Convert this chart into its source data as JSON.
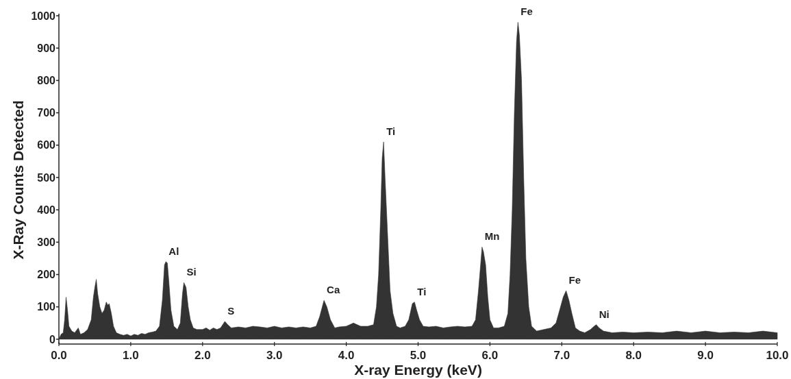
{
  "chart_data": {
    "type": "area",
    "xlabel": "X-ray Energy (keV)",
    "ylabel": "X-Ray Counts Detected",
    "x": [
      0,
      0.03,
      0.06,
      0.08,
      0.1,
      0.12,
      0.14,
      0.18,
      0.22,
      0.27,
      0.3,
      0.35,
      0.4,
      0.45,
      0.48,
      0.5,
      0.52,
      0.54,
      0.57,
      0.6,
      0.63,
      0.66,
      0.68,
      0.7,
      0.73,
      0.76,
      0.8,
      0.85,
      0.9,
      0.95,
      1,
      1.05,
      1.1,
      1.15,
      1.2,
      1.25,
      1.3,
      1.35,
      1.4,
      1.44,
      1.47,
      1.49,
      1.51,
      1.53,
      1.56,
      1.6,
      1.65,
      1.69,
      1.72,
      1.74,
      1.77,
      1.8,
      1.83,
      1.87,
      1.92,
      2,
      2.05,
      2.1,
      2.15,
      2.2,
      2.25,
      2.31,
      2.35,
      2.4,
      2.5,
      2.6,
      2.7,
      2.8,
      2.9,
      3,
      3.1,
      3.2,
      3.3,
      3.4,
      3.5,
      3.58,
      3.63,
      3.69,
      3.73,
      3.78,
      3.84,
      3.9,
      4,
      4.1,
      4.2,
      4.3,
      4.38,
      4.42,
      4.45,
      4.48,
      4.5,
      4.52,
      4.54,
      4.56,
      4.58,
      4.61,
      4.65,
      4.7,
      4.75,
      4.82,
      4.87,
      4.92,
      4.95,
      4.98,
      5.02,
      5.07,
      5.15,
      5.25,
      5.35,
      5.45,
      5.55,
      5.65,
      5.75,
      5.8,
      5.84,
      5.87,
      5.89,
      5.91,
      5.94,
      5.97,
      6,
      6.05,
      6.12,
      6.2,
      6.25,
      6.28,
      6.31,
      6.34,
      6.37,
      6.39,
      6.41,
      6.44,
      6.47,
      6.5,
      6.54,
      6.58,
      6.65,
      6.75,
      6.85,
      6.92,
      6.97,
      7.02,
      7.06,
      7.1,
      7.14,
      7.19,
      7.25,
      7.32,
      7.4,
      7.45,
      7.48,
      7.52,
      7.58,
      7.7,
      7.85,
      8,
      8.2,
      8.4,
      8.6,
      8.8,
      9,
      9.2,
      9.4,
      9.6,
      9.8,
      10
    ],
    "series": [
      {
        "color": "#333333",
        "values": [
          0,
          15,
          20,
          60,
          130,
          90,
          40,
          25,
          20,
          35,
          15,
          20,
          30,
          60,
          130,
          160,
          185,
          140,
          100,
          80,
          90,
          115,
          105,
          110,
          80,
          40,
          20,
          15,
          12,
          15,
          10,
          15,
          12,
          18,
          15,
          20,
          22,
          25,
          40,
          120,
          230,
          240,
          235,
          180,
          90,
          40,
          30,
          50,
          140,
          175,
          160,
          100,
          60,
          35,
          30,
          30,
          35,
          28,
          35,
          30,
          35,
          55,
          45,
          35,
          38,
          35,
          40,
          38,
          35,
          40,
          35,
          38,
          35,
          38,
          35,
          40,
          70,
          120,
          100,
          60,
          35,
          38,
          40,
          50,
          40,
          40,
          45,
          100,
          200,
          400,
          560,
          610,
          500,
          400,
          300,
          150,
          80,
          40,
          35,
          40,
          60,
          110,
          115,
          90,
          60,
          40,
          38,
          40,
          35,
          38,
          40,
          38,
          40,
          60,
          150,
          230,
          285,
          270,
          230,
          130,
          60,
          35,
          35,
          40,
          80,
          200,
          400,
          700,
          920,
          980,
          940,
          800,
          500,
          250,
          100,
          40,
          25,
          30,
          35,
          50,
          90,
          130,
          150,
          120,
          80,
          35,
          25,
          20,
          30,
          40,
          45,
          35,
          25,
          20,
          22,
          20,
          22,
          20,
          25,
          20,
          25,
          20,
          22,
          20,
          25,
          20
        ]
      }
    ],
    "xlim": [
      0,
      10
    ],
    "ylim": [
      -15,
      1000
    ],
    "xticks": [
      {
        "value": 0,
        "label": "0.0"
      },
      {
        "value": 1,
        "label": "1.0"
      },
      {
        "value": 2,
        "label": "2.0"
      },
      {
        "value": 3,
        "label": "3.0"
      },
      {
        "value": 4,
        "label": "4.0"
      },
      {
        "value": 5,
        "label": "5.0"
      },
      {
        "value": 6,
        "label": "6.0"
      },
      {
        "value": 7,
        "label": "7.0"
      },
      {
        "value": 8,
        "label": "8.0"
      },
      {
        "value": 9,
        "label": "9.0"
      },
      {
        "value": 10,
        "label": "10.0"
      }
    ],
    "yticks": [
      0,
      100,
      200,
      300,
      400,
      500,
      600,
      700,
      800,
      900,
      1000
    ],
    "grid": false,
    "annotations": [
      {
        "text": "Al",
        "x": 1.49,
        "y": 240
      },
      {
        "text": "Si",
        "x": 1.74,
        "y": 175
      },
      {
        "text": "S",
        "x": 2.31,
        "y": 55
      },
      {
        "text": "Ca",
        "x": 3.69,
        "y": 120
      },
      {
        "text": "Ti",
        "x": 4.52,
        "y": 610
      },
      {
        "text": "Ti",
        "x": 4.95,
        "y": 115
      },
      {
        "text": "Mn",
        "x": 5.89,
        "y": 285
      },
      {
        "text": "Fe",
        "x": 6.39,
        "y": 980
      },
      {
        "text": "Fe",
        "x": 7.06,
        "y": 150
      },
      {
        "text": "Ni",
        "x": 7.48,
        "y": 45
      }
    ]
  }
}
